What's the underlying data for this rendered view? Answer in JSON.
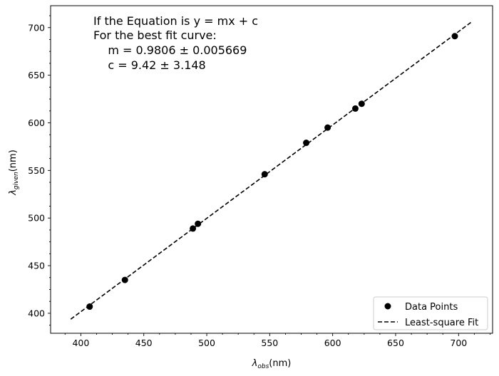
{
  "chart_data": {
    "type": "scatter",
    "xlabel_symbol": "λ",
    "xlabel_sub": "obs",
    "xlabel_unit": "(nm)",
    "ylabel_symbol": "λ",
    "ylabel_sub": "given",
    "ylabel_unit": "(nm)",
    "xlim": [
      376,
      727
    ],
    "ylim": [
      379,
      723
    ],
    "xticks": [
      400,
      450,
      500,
      550,
      600,
      650,
      700
    ],
    "yticks": [
      400,
      450,
      500,
      550,
      600,
      650,
      700
    ],
    "grid": false,
    "legend_position": "lower right",
    "series": [
      {
        "name": "Data Points",
        "kind": "scatter",
        "color": "#000000",
        "points": [
          [
            407,
            407
          ],
          [
            435,
            435
          ],
          [
            489,
            489
          ],
          [
            493,
            494
          ],
          [
            546,
            546
          ],
          [
            579,
            579
          ],
          [
            596,
            595
          ],
          [
            618,
            615
          ],
          [
            623,
            620
          ],
          [
            697,
            691
          ]
        ]
      },
      {
        "name": "Least-square Fit",
        "kind": "line",
        "style": "dashed",
        "color": "#000000",
        "slope": 0.9806,
        "intercept": 9.42,
        "x_range": [
          392,
          711
        ]
      }
    ],
    "annotation": [
      "If the Equation is y = mx + c",
      "For the best fit curve:",
      "    m = 0.9806 ± 0.005669",
      "    c = 9.42 ± 3.148"
    ]
  }
}
